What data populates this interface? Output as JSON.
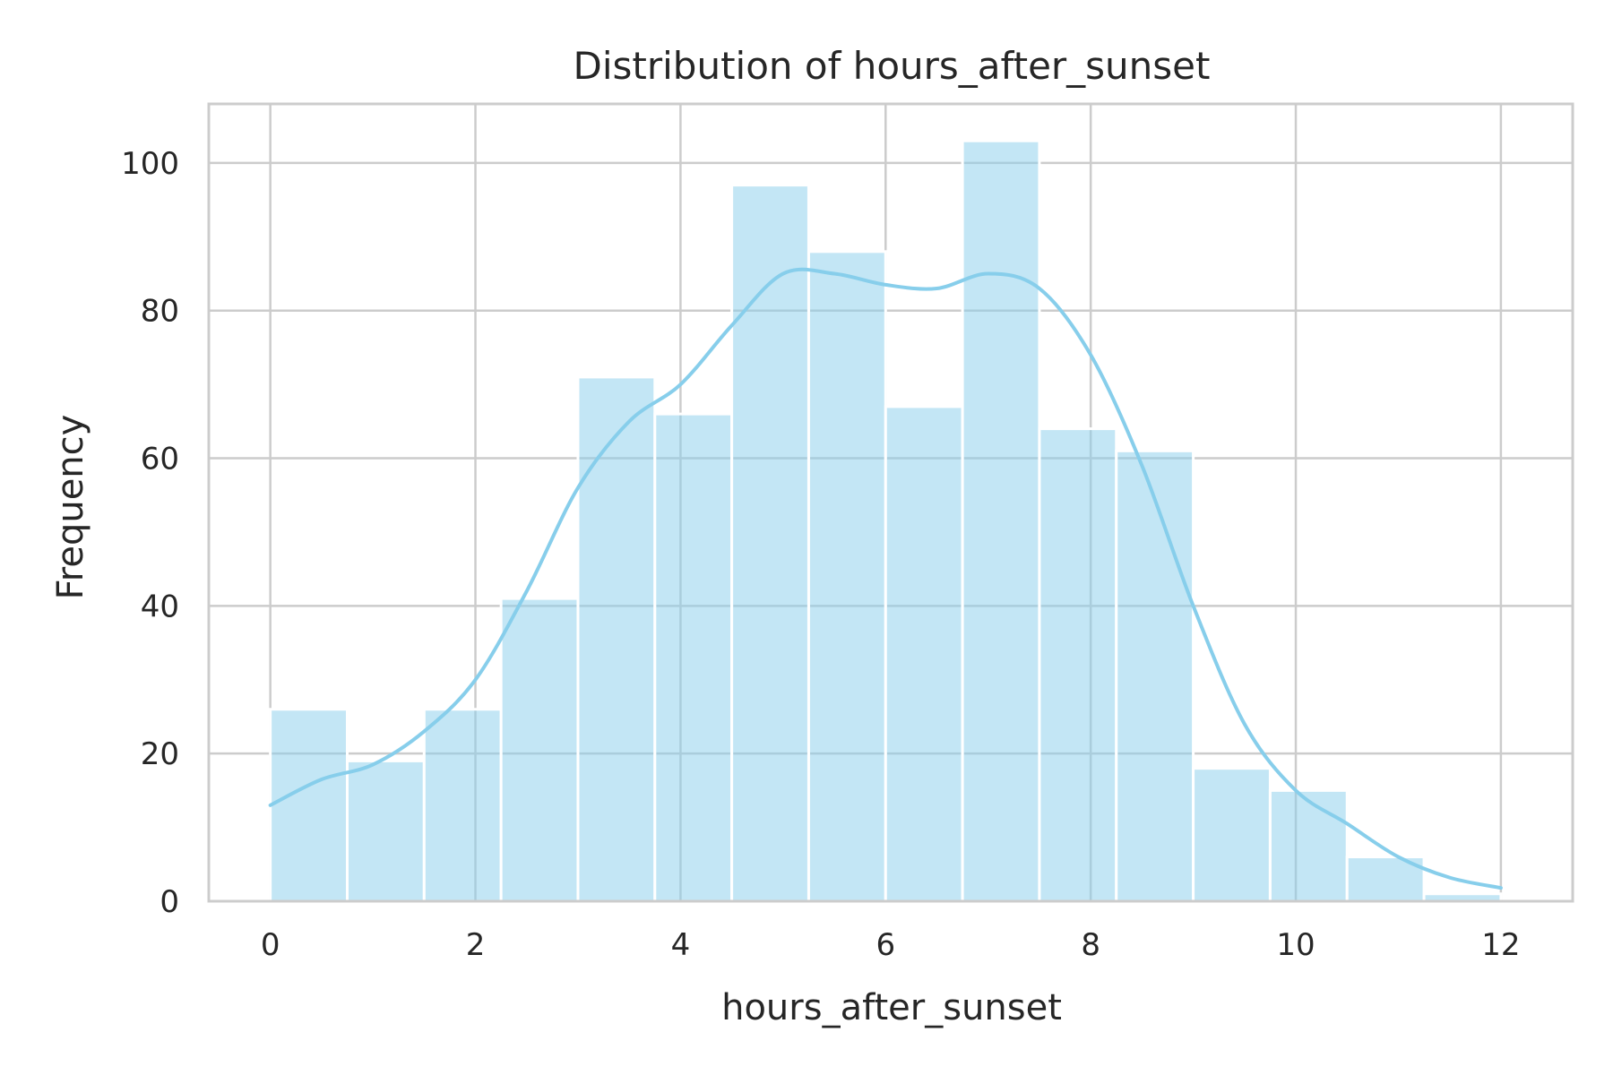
{
  "chart_data": {
    "type": "bar",
    "title": "Distribution of hours_after_sunset",
    "xlabel": "hours_after_sunset",
    "ylabel": "Frequency",
    "bin_edges": [
      0,
      0.75,
      1.5,
      2.25,
      3,
      3.75,
      4.5,
      5.25,
      6,
      6.75,
      7.5,
      8.25,
      9,
      9.75,
      10.5,
      11.25,
      12
    ],
    "values": [
      26,
      19,
      26,
      41,
      71,
      66,
      97,
      88,
      67,
      103,
      64,
      61,
      18,
      15,
      6,
      1
    ],
    "xlim": [
      -0.6,
      12.7
    ],
    "ylim": [
      0,
      108
    ],
    "xticks": [
      "0",
      "2",
      "4",
      "6",
      "8",
      "10",
      "12"
    ],
    "yticks": [
      "0",
      "20",
      "40",
      "60",
      "80",
      "100"
    ],
    "kde": {
      "x": [
        0,
        0.5,
        1,
        1.5,
        2,
        2.5,
        3,
        3.5,
        4,
        4.5,
        5,
        5.5,
        6,
        6.5,
        7,
        7.5,
        8,
        8.5,
        9,
        9.5,
        10,
        10.5,
        11,
        11.5,
        12
      ],
      "y": [
        13,
        16.5,
        18.5,
        23,
        30,
        42,
        56,
        65,
        70,
        78,
        85,
        85,
        83.5,
        83,
        85,
        83,
        74,
        59,
        40,
        24,
        15,
        10.5,
        6,
        3.2,
        1.8
      ]
    },
    "grid": true,
    "colors": {
      "bar": "#87ceeb",
      "line": "#87ceeb"
    }
  }
}
